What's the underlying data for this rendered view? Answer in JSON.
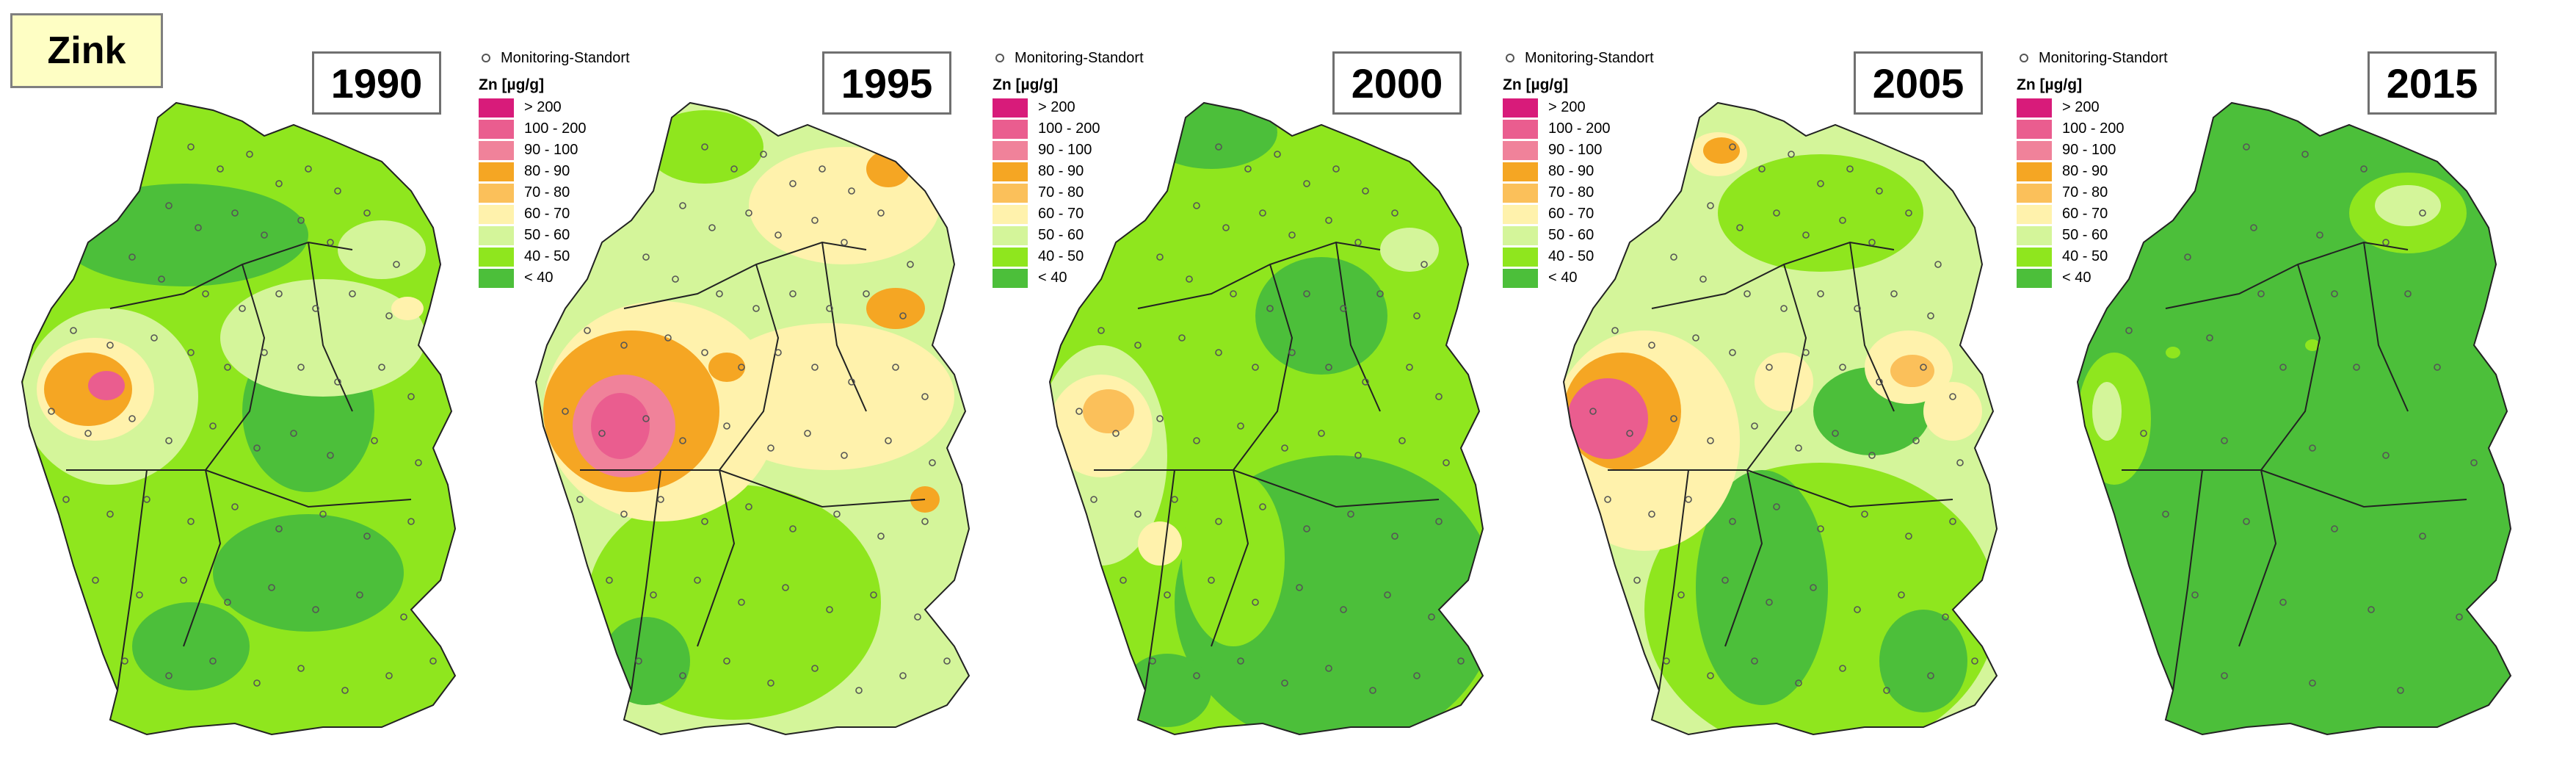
{
  "title": "Zink",
  "legend": {
    "site_label": "Monitoring-Standort",
    "unit_label": "Zn [µg/g]",
    "classes": [
      {
        "label": "> 200",
        "color": "#d81b7a"
      },
      {
        "label": "100 - 200",
        "color": "#ea5d8f"
      },
      {
        "label": "90 - 100",
        "color": "#f0829a"
      },
      {
        "label": "80 - 90",
        "color": "#f5a623"
      },
      {
        "label": "70 - 80",
        "color": "#fbc05a"
      },
      {
        "label": "60 - 70",
        "color": "#fff2ac"
      },
      {
        "label": "50 - 60",
        "color": "#d4f59a"
      },
      {
        "label": "40 - 50",
        "color": "#8fe61e"
      },
      {
        "label": "< 40",
        "color": "#4cbf3a"
      }
    ]
  },
  "maps": [
    {
      "year": "1990"
    },
    {
      "year": "1995"
    },
    {
      "year": "2000"
    },
    {
      "year": "2005"
    },
    {
      "year": "2015"
    }
  ]
}
